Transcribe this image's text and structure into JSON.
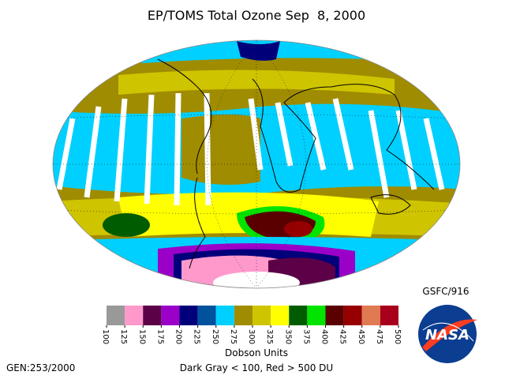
{
  "title": "EP/TOMS Total Ozone Sep  8, 2000",
  "credit": "GSFC/916",
  "generation": "GEN:253/2000",
  "logo": "NASA",
  "colorbar": {
    "label": "Dobson Units",
    "note": "Dark Gray < 100, Red > 500 DU",
    "ticks": [
      100,
      125,
      150,
      175,
      200,
      225,
      250,
      275,
      300,
      325,
      350,
      375,
      400,
      425,
      450,
      475,
      500
    ],
    "colors": [
      "#999999",
      "#ff99cc",
      "#5c0047",
      "#9a00c8",
      "#00007a",
      "#00529c",
      "#00d0ff",
      "#a08c00",
      "#cfc400",
      "#ffff00",
      "#005c00",
      "#00e400",
      "#5a0000",
      "#960000",
      "#e07a50",
      "#a8001c"
    ]
  }
}
